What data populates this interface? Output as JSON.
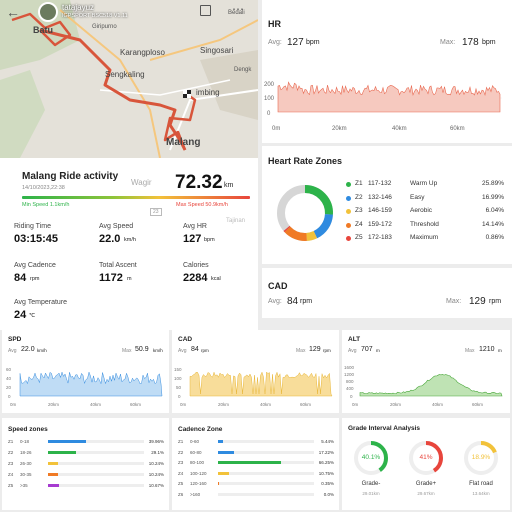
{
  "map": {
    "user": "tatajayuz",
    "device": "IGPSPORT BSC518  V1.11",
    "places": [
      "Batu",
      "Giripurno",
      "Karangploso",
      "Singosari",
      "Sengkaling",
      "Dengk",
      "Bedali",
      "imbing",
      "Malang",
      "Wagir",
      "Tajinan"
    ]
  },
  "activity": {
    "title": "Malang Ride activity",
    "datetime": "14/10/2023,22:38",
    "distance": "72.32",
    "distance_unit": "km",
    "min_speed": "Min Speed 1.1km/h",
    "max_speed": "Max Speed 50.9km/h",
    "badge": "23",
    "stats": [
      {
        "label": "Riding Time",
        "value": "03:15:45",
        "unit": ""
      },
      {
        "label": "Avg Speed",
        "value": "22.0",
        "unit": "km/h"
      },
      {
        "label": "Avg HR",
        "value": "127",
        "unit": "bpm"
      },
      {
        "label": "Avg Cadence",
        "value": "84",
        "unit": "rpm"
      },
      {
        "label": "Total Ascent",
        "value": "1172",
        "unit": "m"
      },
      {
        "label": "Calories",
        "value": "2284",
        "unit": "kcal"
      },
      {
        "label": "Avg Temperature",
        "value": "24",
        "unit": "℃"
      }
    ]
  },
  "hr": {
    "title": "HR",
    "avg_label": "Avg:",
    "avg_value": "127",
    "avg_unit": "bpm",
    "max_label": "Max:",
    "max_value": "178",
    "max_unit": "bpm",
    "yticks": [
      "200",
      "100",
      "0"
    ],
    "xticks": [
      "0m",
      "20km",
      "40km",
      "60km"
    ]
  },
  "zones": {
    "title": "Heart Rate Zones",
    "items": [
      {
        "z": "Z1",
        "range": "117-132",
        "name": "Warm Up",
        "pct": "25.89%",
        "color": "#2db34a"
      },
      {
        "z": "Z2",
        "range": "132-146",
        "name": "Easy",
        "pct": "16.99%",
        "color": "#2f8be0"
      },
      {
        "z": "Z3",
        "range": "146-159",
        "name": "Aerobic",
        "pct": "6.04%",
        "color": "#f2c23a"
      },
      {
        "z": "Z4",
        "range": "159-172",
        "name": "Threshold",
        "pct": "14.14%",
        "color": "#f07a25"
      },
      {
        "z": "Z5",
        "range": "172-183",
        "name": "Maximum",
        "pct": "0.86%",
        "color": "#e8453c"
      }
    ]
  },
  "cad": {
    "title": "CAD",
    "avg_label": "Avg:",
    "avg_value": "84",
    "avg_unit": "rpm",
    "max_label": "Max:",
    "max_value": "129",
    "max_unit": "rpm"
  },
  "spd": {
    "title": "SPD",
    "avg_label": "Avg",
    "avg_value": "22.0",
    "avg_unit": "km/h",
    "max_label": "Max",
    "max_value": "50.9",
    "max_unit": "km/h",
    "yticks": [
      "60",
      "40",
      "20",
      "0"
    ],
    "xticks": [
      "0m",
      "20km",
      "40km",
      "60km"
    ]
  },
  "cad_small": {
    "title": "CAD",
    "avg_label": "Avg",
    "avg_value": "84",
    "avg_unit": "rpm",
    "max_label": "Max",
    "max_value": "129",
    "max_unit": "rpm",
    "yticks": [
      "150",
      "100",
      "50",
      "0"
    ],
    "xticks": [
      "0m",
      "20km",
      "40km",
      "60km"
    ]
  },
  "alt": {
    "title": "ALT",
    "avg_label": "Avg",
    "avg_value": "707",
    "avg_unit": "m",
    "max_label": "Max",
    "max_value": "1210",
    "max_unit": "m",
    "yticks": [
      "1600",
      "1200",
      "800",
      "400",
      "0"
    ],
    "xticks": [
      "0m",
      "20km",
      "40km",
      "60km"
    ]
  },
  "speed_zones": {
    "title": "Speed zones",
    "items": [
      {
        "z": "Z1",
        "range": "0-18",
        "pct": "39.96%",
        "frac": 0.4,
        "color": "#2f8be0"
      },
      {
        "z": "Z2",
        "range": "18-26",
        "pct": "29.1%",
        "frac": 0.29,
        "color": "#2db34a"
      },
      {
        "z": "Z3",
        "range": "26-30",
        "pct": "10.24%",
        "frac": 0.1,
        "color": "#f2c23a"
      },
      {
        "z": "Z4",
        "range": "30-35",
        "pct": "10.24%",
        "frac": 0.1,
        "color": "#f07a25"
      },
      {
        "z": "Z5",
        "range": ">35",
        "pct": "10.67%",
        "frac": 0.11,
        "color": "#a63bd0"
      }
    ]
  },
  "cadence_zones": {
    "title": "Cadence Zone",
    "items": [
      {
        "z": "Z1",
        "range": "0-60",
        "pct": "5.44%",
        "frac": 0.05,
        "color": "#2f8be0"
      },
      {
        "z": "Z2",
        "range": "60-80",
        "pct": "17.22%",
        "frac": 0.17,
        "color": "#2f8be0"
      },
      {
        "z": "Z3",
        "range": "80-100",
        "pct": "66.25%",
        "frac": 0.66,
        "color": "#2db34a"
      },
      {
        "z": "Z4",
        "range": "100-120",
        "pct": "10.75%",
        "frac": 0.11,
        "color": "#f2c23a"
      },
      {
        "z": "Z5",
        "range": "120-160",
        "pct": "0.35%",
        "frac": 0.01,
        "color": "#f07a25"
      },
      {
        "z": "Z6",
        "range": ">160",
        "pct": "0.0%",
        "frac": 0.0,
        "color": "#e8453c"
      }
    ]
  },
  "grade": {
    "title": "Grade Interval Analysis",
    "items": [
      {
        "pct": "40.1%",
        "frac": 0.401,
        "name": "Grade-",
        "dist": "29.01km",
        "color": "#2db34a"
      },
      {
        "pct": "41%",
        "frac": 0.41,
        "name": "Grade+",
        "dist": "29.67km",
        "color": "#e8453c"
      },
      {
        "pct": "18.9%",
        "frac": 0.189,
        "name": "Flat road",
        "dist": "13.64km",
        "color": "#f2c23a"
      }
    ]
  }
}
